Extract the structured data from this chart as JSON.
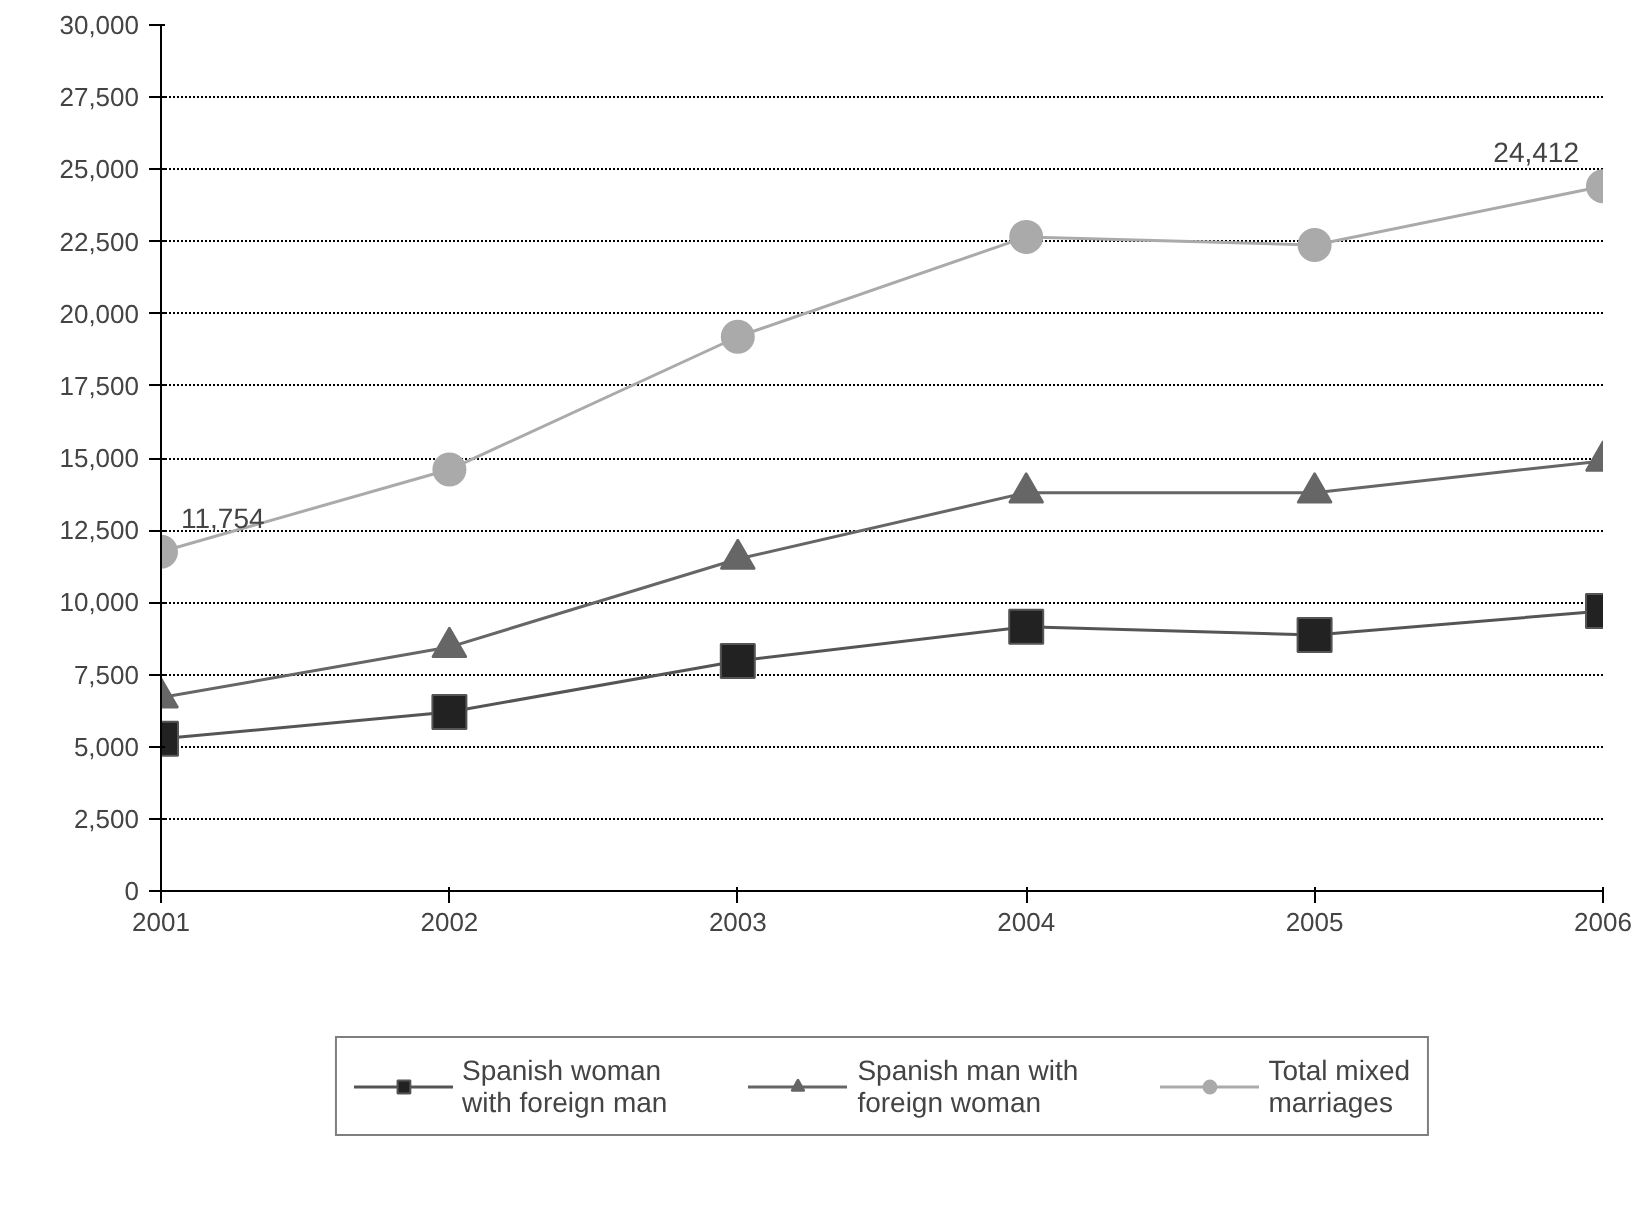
{
  "chart_data": {
    "type": "line",
    "x": [
      2001,
      2002,
      2003,
      2004,
      2005,
      2006
    ],
    "series": [
      {
        "name": "Spanish woman with foreign man",
        "color": "#222222",
        "marker": "square",
        "values": [
          5270,
          6200,
          7970,
          9150,
          8870,
          9700
        ]
      },
      {
        "name": "Spanish man with foreign woman",
        "color": "#666666",
        "marker": "triangle",
        "values": [
          6700,
          8450,
          11500,
          13800,
          13800,
          14900
        ]
      },
      {
        "name": "Total mixed marriages",
        "color": "#aaaaaa",
        "marker": "circle",
        "values": [
          11754,
          14600,
          19200,
          22660,
          22380,
          24412
        ]
      }
    ],
    "annotations": [
      {
        "text": "11,754",
        "x": 2001,
        "y": 11754
      },
      {
        "text": "24,412",
        "x": 2006,
        "y": 24412
      }
    ],
    "xlim": [
      2001,
      2006
    ],
    "xticks": [
      2001,
      2002,
      2003,
      2004,
      2005,
      2006
    ],
    "ylim": [
      0,
      30000
    ],
    "yticks": [
      {
        "value": 0,
        "label": "0"
      },
      {
        "value": 2500,
        "label": "2,500"
      },
      {
        "value": 5000,
        "label": "5,000"
      },
      {
        "value": 7500,
        "label": "7,500"
      },
      {
        "value": 10000,
        "label": "10,000"
      },
      {
        "value": 12500,
        "label": "12,500"
      },
      {
        "value": 15000,
        "label": "15,000"
      },
      {
        "value": 17500,
        "label": "17,500"
      },
      {
        "value": 20000,
        "label": "20,000"
      },
      {
        "value": 22500,
        "label": "22,500"
      },
      {
        "value": 25000,
        "label": "25,000"
      },
      {
        "value": 27500,
        "label": "27,500"
      },
      {
        "value": 30000,
        "label": "30,000"
      }
    ],
    "grid": "y",
    "legend": "bottom"
  }
}
